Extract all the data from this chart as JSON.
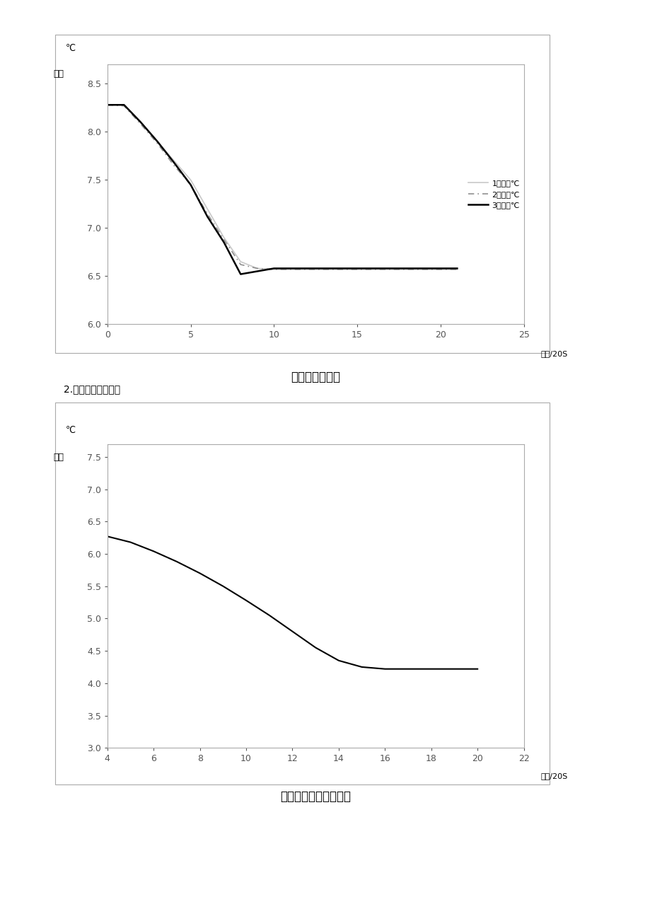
{
  "chart1": {
    "title": "环己烷冷却曲线",
    "ylabel_line1": "℃",
    "ylabel_line2": "温度",
    "xlabel": "时间/20S",
    "xlim": [
      0,
      25
    ],
    "ylim": [
      6.0,
      8.7
    ],
    "yticks": [
      6.0,
      6.5,
      7.0,
      7.5,
      8.0,
      8.5
    ],
    "xticks": [
      0,
      5,
      10,
      15,
      20,
      25
    ],
    "series1_x": [
      0,
      1,
      2,
      3,
      4,
      5,
      6,
      7,
      8,
      9,
      10,
      11,
      12,
      13,
      14,
      15,
      16,
      17,
      18,
      19,
      20,
      21
    ],
    "series1_y": [
      8.28,
      8.28,
      8.1,
      7.9,
      7.7,
      7.5,
      7.2,
      6.9,
      6.65,
      6.58,
      6.57,
      6.57,
      6.57,
      6.57,
      6.57,
      6.57,
      6.57,
      6.57,
      6.57,
      6.57,
      6.57,
      6.57
    ],
    "series2_x": [
      0,
      1,
      2,
      3,
      4,
      5,
      6,
      7,
      8,
      9,
      10,
      11,
      12,
      13,
      14,
      15,
      16,
      17,
      18,
      19,
      20,
      21
    ],
    "series2_y": [
      8.28,
      8.27,
      8.08,
      7.88,
      7.65,
      7.45,
      7.15,
      6.88,
      6.62,
      6.58,
      6.57,
      6.57,
      6.57,
      6.57,
      6.57,
      6.57,
      6.57,
      6.57,
      6.57,
      6.57,
      6.57,
      6.57
    ],
    "series3_x": [
      0,
      1,
      2,
      3,
      4,
      5,
      6,
      7,
      8,
      9,
      10,
      11,
      12,
      13,
      14,
      15,
      16,
      17,
      18,
      19,
      20,
      21
    ],
    "series3_y": [
      8.28,
      8.28,
      8.1,
      7.9,
      7.68,
      7.45,
      7.12,
      6.85,
      6.52,
      6.55,
      6.58,
      6.58,
      6.58,
      6.58,
      6.58,
      6.58,
      6.58,
      6.58,
      6.58,
      6.58,
      6.58,
      6.58
    ],
    "legend1": "1温度：℃",
    "legend2": "2温度：℃",
    "legend3": "3温度：℃",
    "color1": "#c8c8c8",
    "color2": "#909090",
    "color3": "#000000"
  },
  "chart2": {
    "title": "加奔后环己烷冷却曲线",
    "ylabel_line1": "℃",
    "ylabel_line2": "温度",
    "xlabel": "时间/20S",
    "xlim": [
      4,
      22
    ],
    "ylim": [
      3.0,
      7.7
    ],
    "yticks": [
      3.0,
      3.5,
      4.0,
      4.5,
      5.0,
      5.5,
      6.0,
      6.5,
      7.0,
      7.5
    ],
    "xticks": [
      4,
      6,
      8,
      10,
      12,
      14,
      16,
      18,
      20,
      22
    ],
    "series_x": [
      4,
      5,
      6,
      7,
      8,
      9,
      10,
      11,
      12,
      13,
      14,
      15,
      16,
      17,
      18,
      19,
      20
    ],
    "series_y": [
      6.27,
      6.18,
      6.04,
      5.88,
      5.7,
      5.5,
      5.28,
      5.05,
      4.8,
      4.55,
      4.35,
      4.25,
      4.22,
      4.22,
      4.22,
      4.22,
      4.22
    ],
    "color": "#000000"
  },
  "label_text": "2.作出加奔冷却曲线",
  "spine_color": "#aaaaaa",
  "tick_color": "#555555"
}
